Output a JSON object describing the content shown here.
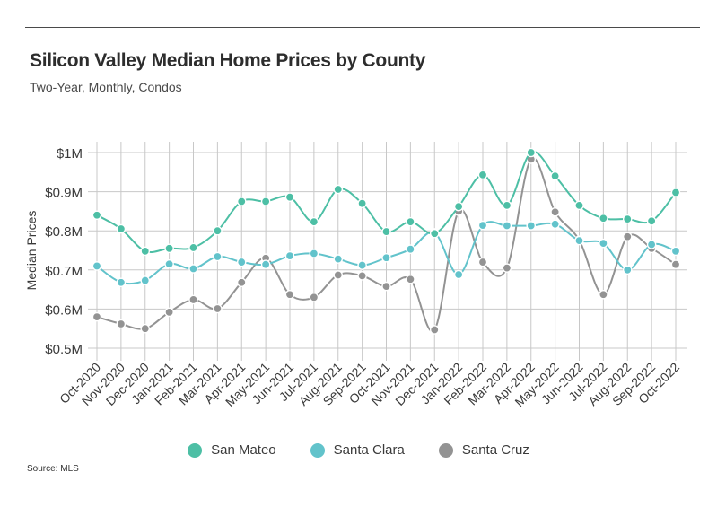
{
  "header": {
    "title": "Silicon Valley Median Home Prices by County",
    "subtitle": "Two-Year, Monthly, Condos"
  },
  "footer": {
    "source": "Source: MLS"
  },
  "chart_data": {
    "type": "line",
    "title": "Silicon Valley Median Home Prices by County",
    "subtitle": "Two-Year, Monthly, Condos",
    "xlabel": "",
    "ylabel": "Median Prices",
    "ylim": [
      0.5,
      1.0
    ],
    "yticks": [
      0.5,
      0.6,
      0.7,
      0.8,
      0.9,
      1.0
    ],
    "ytick_labels": [
      "$0.5M",
      "$0.6M",
      "$0.7M",
      "$0.8M",
      "$0.9M",
      "$1M"
    ],
    "grid": true,
    "legend_position": "bottom",
    "categories": [
      "Oct-2020",
      "Nov-2020",
      "Dec-2020",
      "Jan-2021",
      "Feb-2021",
      "Mar-2021",
      "Apr-2021",
      "May-2021",
      "Jun-2021",
      "Jul-2021",
      "Aug-2021",
      "Sep-2021",
      "Oct-2021",
      "Nov-2021",
      "Dec-2021",
      "Jan-2022",
      "Feb-2022",
      "Mar-2022",
      "Apr-2022",
      "May-2022",
      "Jun-2022",
      "Jul-2022",
      "Aug-2022",
      "Sep-2022",
      "Oct-2022"
    ],
    "series": [
      {
        "name": "San Mateo",
        "color": "#4dbfa5",
        "values": [
          0.84,
          0.805,
          0.748,
          0.755,
          0.757,
          0.8,
          0.875,
          0.875,
          0.886,
          0.823,
          0.906,
          0.87,
          0.798,
          0.823,
          0.793,
          0.862,
          0.943,
          0.865,
          1.0,
          0.94,
          0.865,
          0.832,
          0.83,
          0.825,
          0.898
        ]
      },
      {
        "name": "Santa Clara",
        "color": "#62c3cb",
        "values": [
          0.71,
          0.668,
          0.673,
          0.715,
          0.703,
          0.734,
          0.72,
          0.714,
          0.736,
          0.742,
          0.728,
          0.712,
          0.731,
          0.753,
          0.795,
          0.688,
          0.814,
          0.813,
          0.813,
          0.817,
          0.775,
          0.768,
          0.7,
          0.765,
          0.748
        ]
      },
      {
        "name": "Santa Cruz",
        "color": "#939393",
        "values": [
          0.58,
          0.562,
          0.55,
          0.592,
          0.624,
          0.601,
          0.668,
          0.73,
          0.637,
          0.63,
          0.687,
          0.685,
          0.658,
          0.676,
          0.547,
          0.85,
          0.72,
          0.705,
          0.983,
          0.848,
          0.776,
          0.637,
          0.785,
          0.755,
          0.714
        ]
      }
    ]
  }
}
